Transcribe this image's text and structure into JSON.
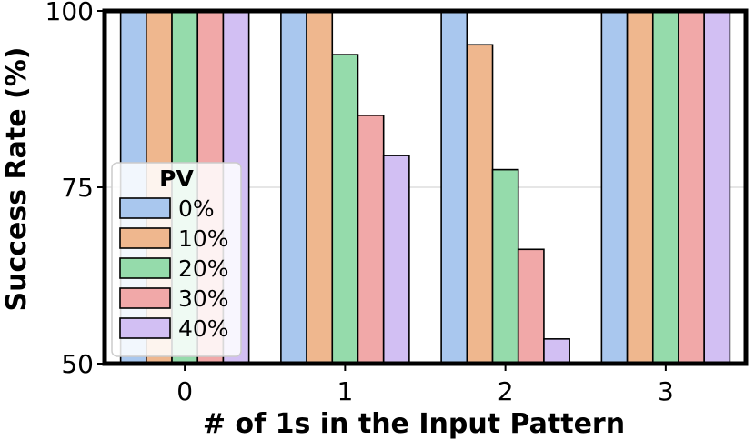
{
  "chart_data": {
    "type": "bar",
    "title": "",
    "xlabel": "# of 1s in the Input Pattern",
    "ylabel": "Success Rate (%)",
    "categories": [
      "0",
      "1",
      "2",
      "3"
    ],
    "ylim": [
      50,
      100
    ],
    "yticks": [
      "50",
      "75",
      "100"
    ],
    "grid": "horizontal",
    "legend": {
      "title": "PV",
      "placement": "center-left"
    },
    "series": [
      {
        "name": "0%",
        "color": "#a9c7ee",
        "values": [
          100,
          100,
          100,
          100
        ]
      },
      {
        "name": "10%",
        "color": "#efb78e",
        "values": [
          100,
          100,
          95.2,
          100
        ]
      },
      {
        "name": "20%",
        "color": "#95dbab",
        "values": [
          100,
          93.8,
          77.5,
          100
        ]
      },
      {
        "name": "30%",
        "color": "#f1a8a8",
        "values": [
          100,
          85.2,
          66.2,
          100
        ]
      },
      {
        "name": "40%",
        "color": "#d2bff3",
        "values": [
          100,
          79.5,
          53.5,
          100
        ]
      }
    ]
  }
}
